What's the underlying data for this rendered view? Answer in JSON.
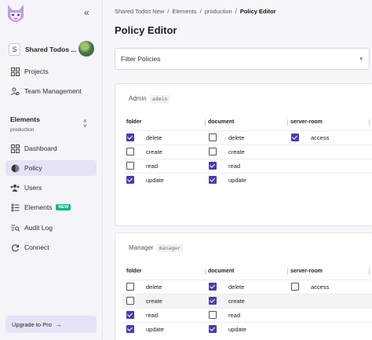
{
  "sidebar": {
    "org_initial": "S",
    "org_name": "Shared Todos ...",
    "top_items": [
      {
        "label": "Projects",
        "icon": "grid-icon"
      },
      {
        "label": "Team Management",
        "icon": "users-gear-icon"
      }
    ],
    "env_title": "Elements",
    "env_name": "production",
    "items": [
      {
        "label": "Dashboard",
        "icon": "grid-icon"
      },
      {
        "label": "Policy",
        "icon": "policy-icon",
        "active": true
      },
      {
        "label": "Users",
        "icon": "users-icon"
      },
      {
        "label": "Elements",
        "icon": "elements-icon",
        "badge": "NEW"
      },
      {
        "label": "Audit Log",
        "icon": "search-list-icon"
      },
      {
        "label": "Connect",
        "icon": "connect-icon"
      }
    ],
    "upgrade_label": "Upgrade to Pro",
    "upgrade_arrow": "→"
  },
  "breadcrumb": {
    "items": [
      "Shared Todos New",
      "Elements",
      "production"
    ],
    "current": "Policy Editor",
    "separator": "/"
  },
  "page_title": "Policy Editor",
  "filter": {
    "label": "Filter Policies",
    "chevron": "▾"
  },
  "resources": [
    "folder",
    "document",
    "server-room"
  ],
  "roles": [
    {
      "name": "Admin",
      "key": "admin",
      "rows": [
        {
          "folder": {
            "action": "delete",
            "checked": true
          },
          "document": {
            "action": "delete",
            "checked": false
          },
          "server-room": {
            "action": "access",
            "checked": true
          }
        },
        {
          "folder": {
            "action": "create",
            "checked": false
          },
          "document": {
            "action": "create",
            "checked": false
          }
        },
        {
          "folder": {
            "action": "read",
            "checked": false
          },
          "document": {
            "action": "read",
            "checked": true
          }
        },
        {
          "folder": {
            "action": "update",
            "checked": true
          },
          "document": {
            "action": "update",
            "checked": true
          }
        }
      ]
    },
    {
      "name": "Manager",
      "key": "manager",
      "rows": [
        {
          "folder": {
            "action": "delete",
            "checked": false
          },
          "document": {
            "action": "delete",
            "checked": true
          },
          "server-room": {
            "action": "access",
            "checked": false
          }
        },
        {
          "folder": {
            "action": "create",
            "checked": false
          },
          "document": {
            "action": "create",
            "checked": true
          }
        },
        {
          "folder": {
            "action": "read",
            "checked": true
          },
          "document": {
            "action": "read",
            "checked": false
          }
        },
        {
          "folder": {
            "action": "update",
            "checked": true
          },
          "document": {
            "action": "update",
            "checked": true
          }
        }
      ]
    }
  ],
  "colors": {
    "accent": "#4c3bb0",
    "active_bg": "#e5e3f6",
    "new_badge": "#13b48f"
  }
}
